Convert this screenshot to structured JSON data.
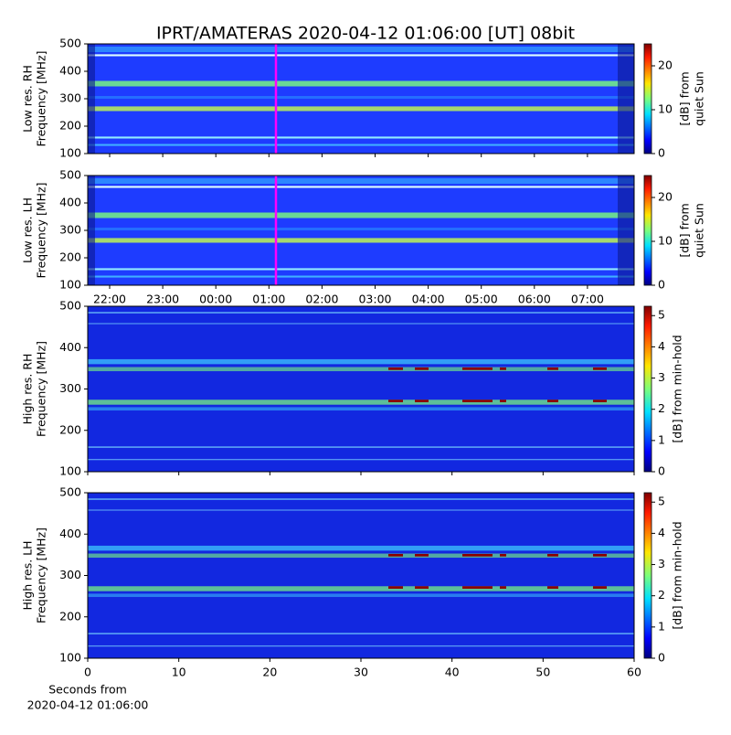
{
  "chart_data": [
    {
      "type": "spectrogram",
      "title": "IPRT/AMATERAS 2020-04-12 01:06:00 [UT]   08bit",
      "ylabel": [
        "Low res. RH",
        "Frequency [MHz]"
      ],
      "ylim": [
        100,
        500
      ],
      "yticks": [
        100,
        200,
        300,
        400,
        500
      ],
      "colorbar_label": [
        "[dB] from",
        "quiet Sun"
      ],
      "clim": [
        0,
        25
      ],
      "cticks": [
        0,
        10,
        20
      ]
    },
    {
      "type": "spectrogram",
      "ylabel": [
        "Low res. LH",
        "Frequency [MHz]"
      ],
      "ylim": [
        100,
        500
      ],
      "yticks": [
        100,
        200,
        300,
        400,
        500
      ],
      "colorbar_label": [
        "[dB] from",
        "quiet Sun"
      ],
      "clim": [
        0,
        25
      ],
      "cticks": [
        0,
        10,
        20
      ],
      "time_ticks": [
        "22:00",
        "23:00",
        "00:00",
        "01:00",
        "02:00",
        "03:00",
        "04:00",
        "05:00",
        "06:00",
        "07:00"
      ]
    },
    {
      "type": "spectrogram",
      "ylabel": [
        "High res. RH",
        "Frequency [MHz]"
      ],
      "ylim": [
        100,
        500
      ],
      "yticks": [
        100,
        200,
        300,
        400,
        500
      ],
      "colorbar_label": [
        "[dB] from min-hold"
      ],
      "clim": [
        0,
        5.3
      ],
      "cticks": [
        0,
        1,
        2,
        3,
        4,
        5
      ]
    },
    {
      "type": "spectrogram",
      "ylabel": [
        "High res. LH",
        "Frequency [MHz]"
      ],
      "ylim": [
        100,
        500
      ],
      "yticks": [
        100,
        200,
        300,
        400,
        500
      ],
      "colorbar_label": [
        "[dB] from min-hold"
      ],
      "clim": [
        0,
        5.3
      ],
      "cticks": [
        0,
        1,
        2,
        3,
        4,
        5
      ],
      "xlim": [
        0,
        60
      ],
      "xticks": [
        0,
        10,
        20,
        30,
        40,
        50,
        60
      ],
      "xlabel": [
        "Seconds from",
        "2020-04-12 01:06:00"
      ]
    }
  ]
}
